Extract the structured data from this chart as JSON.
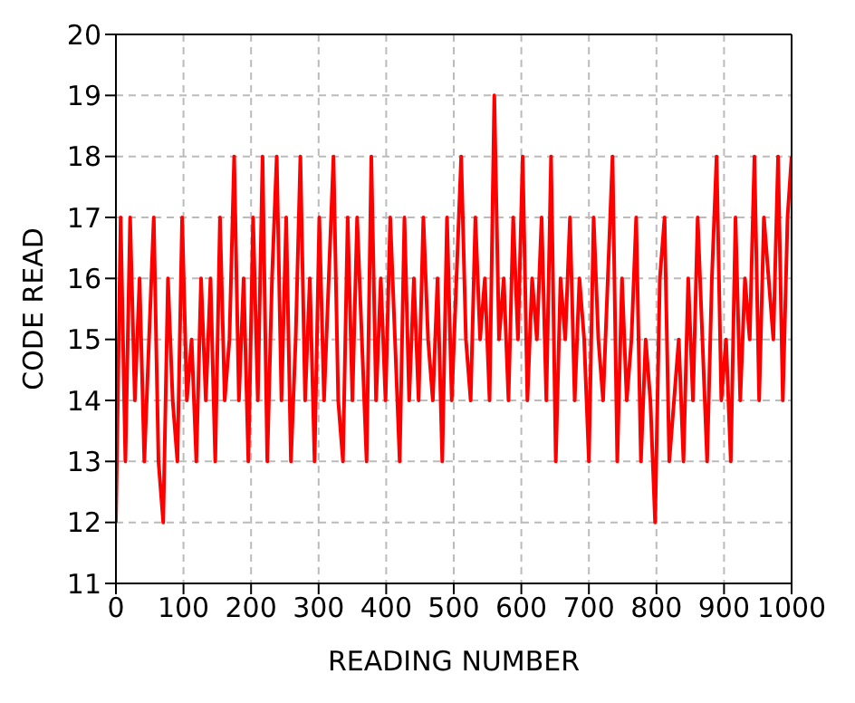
{
  "chart_data": {
    "type": "line",
    "xlabel": "READING NUMBER",
    "ylabel": "CODE READ",
    "x": [
      0,
      7,
      14,
      21,
      28,
      35,
      42,
      49,
      56,
      63,
      70,
      77,
      84,
      91,
      98,
      105,
      112,
      119,
      126,
      133,
      140,
      147,
      154,
      161,
      168,
      175,
      182,
      189,
      196,
      203,
      210,
      217,
      224,
      231,
      238,
      245,
      252,
      259,
      266,
      273,
      280,
      287,
      294,
      301,
      308,
      315,
      322,
      329,
      336,
      343,
      350,
      357,
      364,
      371,
      378,
      385,
      392,
      399,
      406,
      413,
      420,
      427,
      434,
      441,
      448,
      455,
      462,
      469,
      476,
      483,
      490,
      497,
      504,
      511,
      518,
      525,
      532,
      539,
      546,
      553,
      560,
      567,
      574,
      581,
      588,
      595,
      602,
      609,
      616,
      623,
      630,
      637,
      644,
      651,
      658,
      665,
      672,
      679,
      686,
      693,
      700,
      707,
      714,
      721,
      728,
      735,
      742,
      749,
      756,
      763,
      770,
      777,
      784,
      791,
      798,
      805,
      812,
      819,
      826,
      833,
      840,
      847,
      854,
      861,
      868,
      875,
      882,
      889,
      896,
      903,
      910,
      917,
      924,
      931,
      938,
      945,
      952,
      959,
      966,
      973,
      980,
      987,
      994,
      1000
    ],
    "series": [
      {
        "color": "#ff0000",
        "values": [
          12,
          17,
          13,
          17,
          14,
          16,
          13,
          15,
          17,
          13,
          12,
          16,
          14,
          13,
          17,
          14,
          15,
          13,
          16,
          14,
          16,
          13,
          17,
          14,
          15,
          18,
          14,
          16,
          13,
          17,
          14,
          18,
          13,
          16,
          18,
          14,
          17,
          13,
          15,
          18,
          14,
          16,
          13,
          17,
          14,
          16,
          18,
          14,
          13,
          17,
          14,
          17,
          15,
          13,
          18,
          14,
          16,
          14,
          17,
          15,
          13,
          17,
          14,
          16,
          14,
          17,
          15,
          14,
          16,
          13,
          17,
          14,
          16,
          18,
          15,
          14,
          17,
          15,
          16,
          14,
          19,
          15,
          16,
          14,
          17,
          15,
          18,
          14,
          16,
          15,
          17,
          14,
          18,
          13,
          16,
          15,
          17,
          14,
          16,
          15,
          13,
          17,
          15,
          14,
          16,
          18,
          13,
          16,
          14,
          15,
          17,
          13,
          15,
          14,
          12,
          16,
          17,
          13,
          14,
          15,
          13,
          16,
          14,
          17,
          15,
          13,
          16,
          18,
          14,
          15,
          13,
          17,
          14,
          16,
          15,
          18,
          14,
          17,
          16,
          15,
          18,
          14,
          17,
          18
        ]
      }
    ],
    "xlim": [
      0,
      1000
    ],
    "xticks": [
      0,
      100,
      200,
      300,
      400,
      500,
      600,
      700,
      800,
      900,
      1000
    ],
    "ylim": [
      11,
      20
    ],
    "yticks": [
      11,
      12,
      13,
      14,
      15,
      16,
      17,
      18,
      19,
      20
    ],
    "grid": true,
    "marker": "none",
    "line_style": "solid"
  }
}
